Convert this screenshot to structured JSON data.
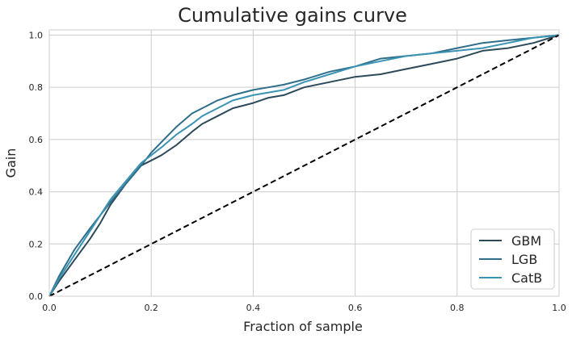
{
  "chart_data": {
    "type": "line",
    "title": "Cumulative gains curve",
    "xlabel": "Fraction of sample",
    "ylabel": "Gain",
    "xlim": [
      0,
      1
    ],
    "ylim": [
      0,
      1.02
    ],
    "xticks": [
      "0.0",
      "0.2",
      "0.4",
      "0.6",
      "0.8",
      "1.0"
    ],
    "yticks": [
      "0.0",
      "0.2",
      "0.4",
      "0.6",
      "0.8",
      "1.0"
    ],
    "grid": true,
    "legend_position": "bottom-right",
    "series": [
      {
        "name": "GBM",
        "color": "#2d4a5a",
        "x": [
          0,
          0.02,
          0.05,
          0.08,
          0.1,
          0.12,
          0.15,
          0.18,
          0.2,
          0.22,
          0.25,
          0.28,
          0.3,
          0.33,
          0.36,
          0.4,
          0.43,
          0.46,
          0.5,
          0.55,
          0.6,
          0.65,
          0.7,
          0.75,
          0.8,
          0.85,
          0.9,
          0.95,
          1.0
        ],
        "values": [
          0,
          0.06,
          0.14,
          0.22,
          0.28,
          0.35,
          0.43,
          0.5,
          0.52,
          0.54,
          0.58,
          0.63,
          0.66,
          0.69,
          0.72,
          0.74,
          0.76,
          0.77,
          0.8,
          0.82,
          0.84,
          0.85,
          0.87,
          0.89,
          0.91,
          0.94,
          0.95,
          0.97,
          1.0
        ]
      },
      {
        "name": "LGB",
        "color": "#2e6e8a",
        "x": [
          0,
          0.02,
          0.05,
          0.08,
          0.1,
          0.12,
          0.15,
          0.18,
          0.2,
          0.22,
          0.25,
          0.28,
          0.3,
          0.33,
          0.36,
          0.4,
          0.43,
          0.46,
          0.5,
          0.55,
          0.6,
          0.65,
          0.7,
          0.75,
          0.8,
          0.85,
          0.9,
          0.95,
          1.0
        ],
        "values": [
          0,
          0.08,
          0.18,
          0.26,
          0.31,
          0.36,
          0.43,
          0.5,
          0.55,
          0.59,
          0.65,
          0.7,
          0.72,
          0.75,
          0.77,
          0.79,
          0.8,
          0.81,
          0.83,
          0.86,
          0.88,
          0.91,
          0.92,
          0.93,
          0.95,
          0.97,
          0.98,
          0.99,
          1.0
        ]
      },
      {
        "name": "CatB",
        "color": "#3a93b3",
        "x": [
          0,
          0.02,
          0.05,
          0.08,
          0.1,
          0.12,
          0.15,
          0.18,
          0.2,
          0.22,
          0.25,
          0.28,
          0.3,
          0.33,
          0.36,
          0.4,
          0.43,
          0.46,
          0.5,
          0.55,
          0.6,
          0.65,
          0.7,
          0.75,
          0.8,
          0.85,
          0.9,
          0.95,
          1.0
        ],
        "values": [
          0,
          0.07,
          0.16,
          0.25,
          0.31,
          0.37,
          0.44,
          0.51,
          0.54,
          0.57,
          0.62,
          0.66,
          0.69,
          0.72,
          0.75,
          0.77,
          0.78,
          0.79,
          0.82,
          0.85,
          0.88,
          0.9,
          0.92,
          0.93,
          0.94,
          0.95,
          0.97,
          0.99,
          1.0
        ]
      },
      {
        "name": "",
        "color": "#000000",
        "dashed": true,
        "x": [
          0,
          1
        ],
        "values": [
          0,
          1
        ]
      }
    ]
  }
}
